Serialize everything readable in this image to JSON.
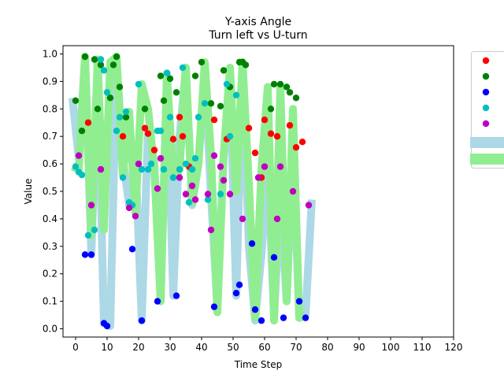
{
  "chart_data": {
    "type": "scatter",
    "title": "Y-axis Angle",
    "subtitle": "Turn left vs U-turn",
    "xlabel": "Time Step",
    "ylabel": "Value",
    "xlim": [
      -4,
      120
    ],
    "ylim": [
      -0.03,
      1.03
    ],
    "x_ticks": [
      0,
      10,
      20,
      30,
      40,
      50,
      60,
      70,
      80,
      90,
      100,
      110,
      120
    ],
    "y_ticks": [
      0.0,
      0.1,
      0.2,
      0.3,
      0.4,
      0.5,
      0.6,
      0.7,
      0.8,
      0.9,
      1.0
    ],
    "grid": false,
    "legend_position": "outside-right",
    "bands": [
      {
        "name": "",
        "color": "#add8e6",
        "x": [
          -1,
          1,
          3,
          5,
          7,
          9,
          11,
          13,
          15,
          17,
          19,
          21,
          23,
          25,
          27,
          29,
          31,
          33,
          35,
          37,
          39,
          41,
          43,
          45,
          47,
          49,
          51,
          53,
          55,
          57,
          59,
          61,
          63,
          65,
          67,
          69,
          71,
          73,
          75
        ],
        "values": [
          0.84,
          0.62,
          0.99,
          0.27,
          0.98,
          0.02,
          0.01,
          0.98,
          0.62,
          0.45,
          0.62,
          0.03,
          0.73,
          0.6,
          0.1,
          0.93,
          0.12,
          0.7,
          0.95,
          0.45,
          0.6,
          0.94,
          0.48,
          0.08,
          0.63,
          0.9,
          0.12,
          0.97,
          0.3,
          0.03,
          0.27,
          0.6,
          0.04,
          0.48,
          0.1,
          0.66,
          0.04,
          0.05,
          0.47
        ]
      },
      {
        "name": "",
        "color": "#90ee90",
        "x": [
          -1,
          1,
          3,
          5,
          7,
          9,
          11,
          13,
          15,
          17,
          19,
          21,
          23,
          25,
          27,
          29,
          31,
          33,
          35,
          37,
          39,
          41,
          43,
          45,
          47,
          49,
          51,
          53,
          55,
          57,
          59,
          61,
          63,
          65,
          67,
          69,
          71,
          73
        ],
        "values": [
          0.59,
          0.58,
          0.99,
          0.34,
          0.98,
          0.36,
          0.97,
          0.99,
          0.56,
          0.79,
          0.42,
          0.89,
          0.8,
          0.58,
          0.1,
          0.92,
          0.55,
          0.58,
          0.95,
          0.46,
          0.6,
          0.97,
          0.63,
          0.06,
          0.63,
          0.95,
          0.5,
          0.97,
          0.53,
          0.04,
          0.58,
          0.88,
          0.03,
          0.88,
          0.1,
          0.8,
          0.04,
          0.05
        ]
      }
    ],
    "series": [
      {
        "name": "",
        "color": "#ff0000",
        "x": [
          4,
          15,
          22,
          23,
          25,
          31,
          33,
          34,
          36,
          44,
          48,
          55,
          57,
          59,
          60,
          62,
          64,
          68,
          70,
          72
        ],
        "values": [
          0.75,
          0.7,
          0.73,
          0.71,
          0.65,
          0.69,
          0.77,
          0.7,
          0.59,
          0.76,
          0.69,
          0.73,
          0.64,
          0.55,
          0.76,
          0.71,
          0.7,
          0.74,
          0.66,
          0.68
        ]
      },
      {
        "name": "",
        "color": "#008000",
        "x": [
          0,
          2,
          3,
          6,
          7,
          8,
          11,
          12,
          13,
          14,
          16,
          22,
          27,
          28,
          30,
          32,
          38,
          40,
          43,
          46,
          47,
          49,
          52,
          53,
          54,
          62,
          63,
          65,
          67,
          68,
          70
        ],
        "values": [
          0.83,
          0.72,
          0.99,
          0.98,
          0.8,
          0.96,
          0.84,
          0.96,
          0.99,
          0.88,
          0.77,
          0.8,
          0.92,
          0.83,
          0.91,
          0.86,
          0.92,
          0.97,
          0.82,
          0.81,
          0.94,
          0.88,
          0.97,
          0.97,
          0.96,
          0.8,
          0.89,
          0.89,
          0.88,
          0.86,
          0.84
        ]
      },
      {
        "name": "",
        "color": "#0000ff",
        "x": [
          3,
          5,
          9,
          10,
          18,
          21,
          26,
          32,
          44,
          51,
          52,
          56,
          57,
          59,
          63,
          66,
          71,
          73
        ],
        "values": [
          0.27,
          0.27,
          0.02,
          0.01,
          0.29,
          0.03,
          0.1,
          0.12,
          0.08,
          0.13,
          0.16,
          0.31,
          0.07,
          0.03,
          0.26,
          0.04,
          0.1,
          0.04
        ]
      },
      {
        "name": "",
        "color": "#00bfbf",
        "x": [
          0,
          1,
          2,
          4,
          6,
          8,
          9,
          10,
          13,
          14,
          15,
          16,
          17,
          18,
          20,
          21,
          23,
          24,
          26,
          27,
          28,
          29,
          30,
          31,
          33,
          34,
          35,
          36,
          37,
          38,
          39,
          41,
          42,
          46,
          48,
          49,
          51
        ],
        "values": [
          0.59,
          0.57,
          0.56,
          0.34,
          0.36,
          0.98,
          0.94,
          0.86,
          0.72,
          0.77,
          0.55,
          0.79,
          0.46,
          0.45,
          0.89,
          0.58,
          0.58,
          0.6,
          0.72,
          0.72,
          0.58,
          0.93,
          0.77,
          0.55,
          0.58,
          0.95,
          0.6,
          0.46,
          0.58,
          0.62,
          0.77,
          0.82,
          0.47,
          0.49,
          0.89,
          0.7,
          0.85
        ]
      },
      {
        "name": "",
        "color": "#bf00bf",
        "x": [
          1,
          5,
          8,
          17,
          19,
          20,
          26,
          27,
          33,
          35,
          37,
          38,
          42,
          43,
          44,
          46,
          47,
          49,
          53,
          58,
          60,
          64,
          65,
          69,
          74
        ],
        "values": [
          0.63,
          0.45,
          0.58,
          0.44,
          0.41,
          0.6,
          0.51,
          0.62,
          0.55,
          0.49,
          0.52,
          0.47,
          0.49,
          0.36,
          0.63,
          0.59,
          0.54,
          0.49,
          0.4,
          0.55,
          0.59,
          0.4,
          0.59,
          0.5,
          0.45
        ]
      }
    ]
  }
}
